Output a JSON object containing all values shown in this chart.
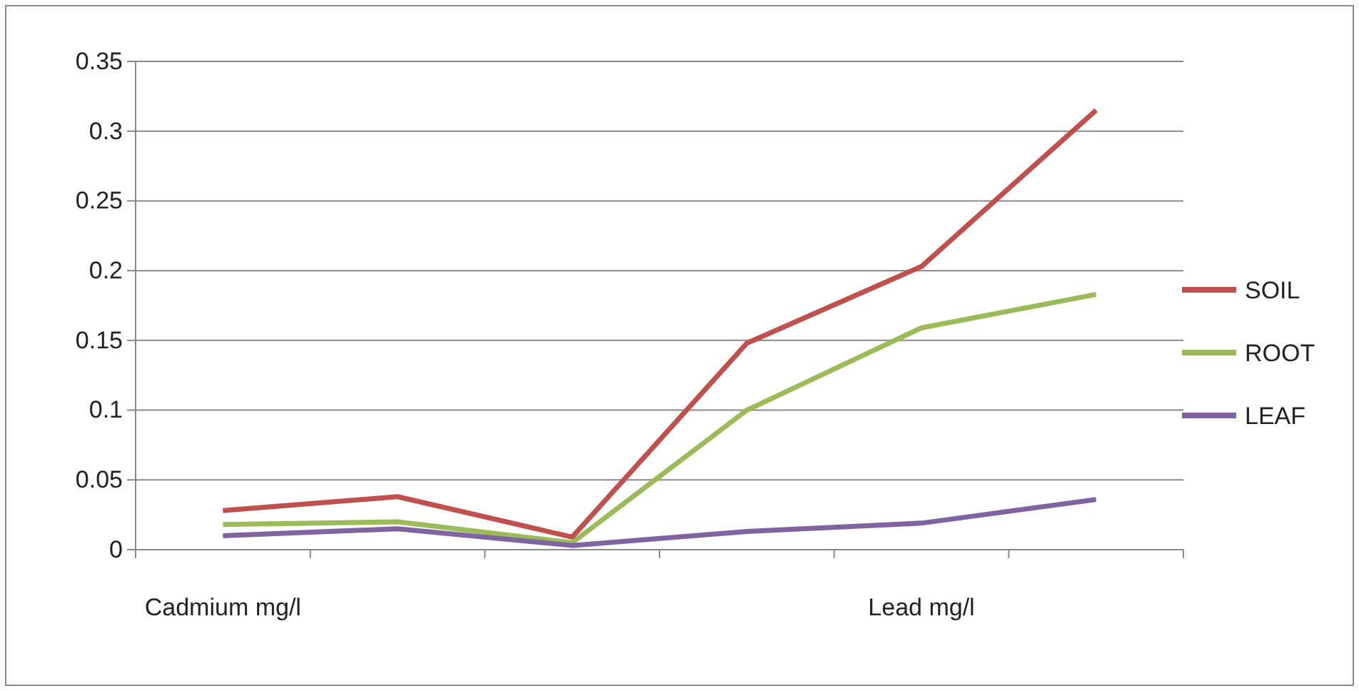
{
  "chart_data": {
    "type": "line",
    "categories": [
      "Cadmium mg/l",
      null,
      null,
      null,
      "Lead mg/l",
      null
    ],
    "series": [
      {
        "name": "SOIL",
        "color": "#c0504d",
        "values": [
          0.028,
          0.038,
          0.009,
          0.148,
          0.203,
          0.315
        ]
      },
      {
        "name": "ROOT",
        "color": "#9bbb59",
        "values": [
          0.018,
          0.02,
          0.005,
          0.1,
          0.159,
          0.183
        ]
      },
      {
        "name": "LEAF",
        "color": "#8064a2",
        "values": [
          0.01,
          0.015,
          0.003,
          0.013,
          0.019,
          0.036
        ]
      }
    ],
    "ylim": [
      0,
      0.35
    ],
    "yticks": [
      0,
      0.05,
      0.1,
      0.15,
      0.2,
      0.25,
      0.3,
      0.35
    ],
    "grid": "y",
    "legend": "right",
    "marker": "none",
    "line_style": "solid"
  }
}
